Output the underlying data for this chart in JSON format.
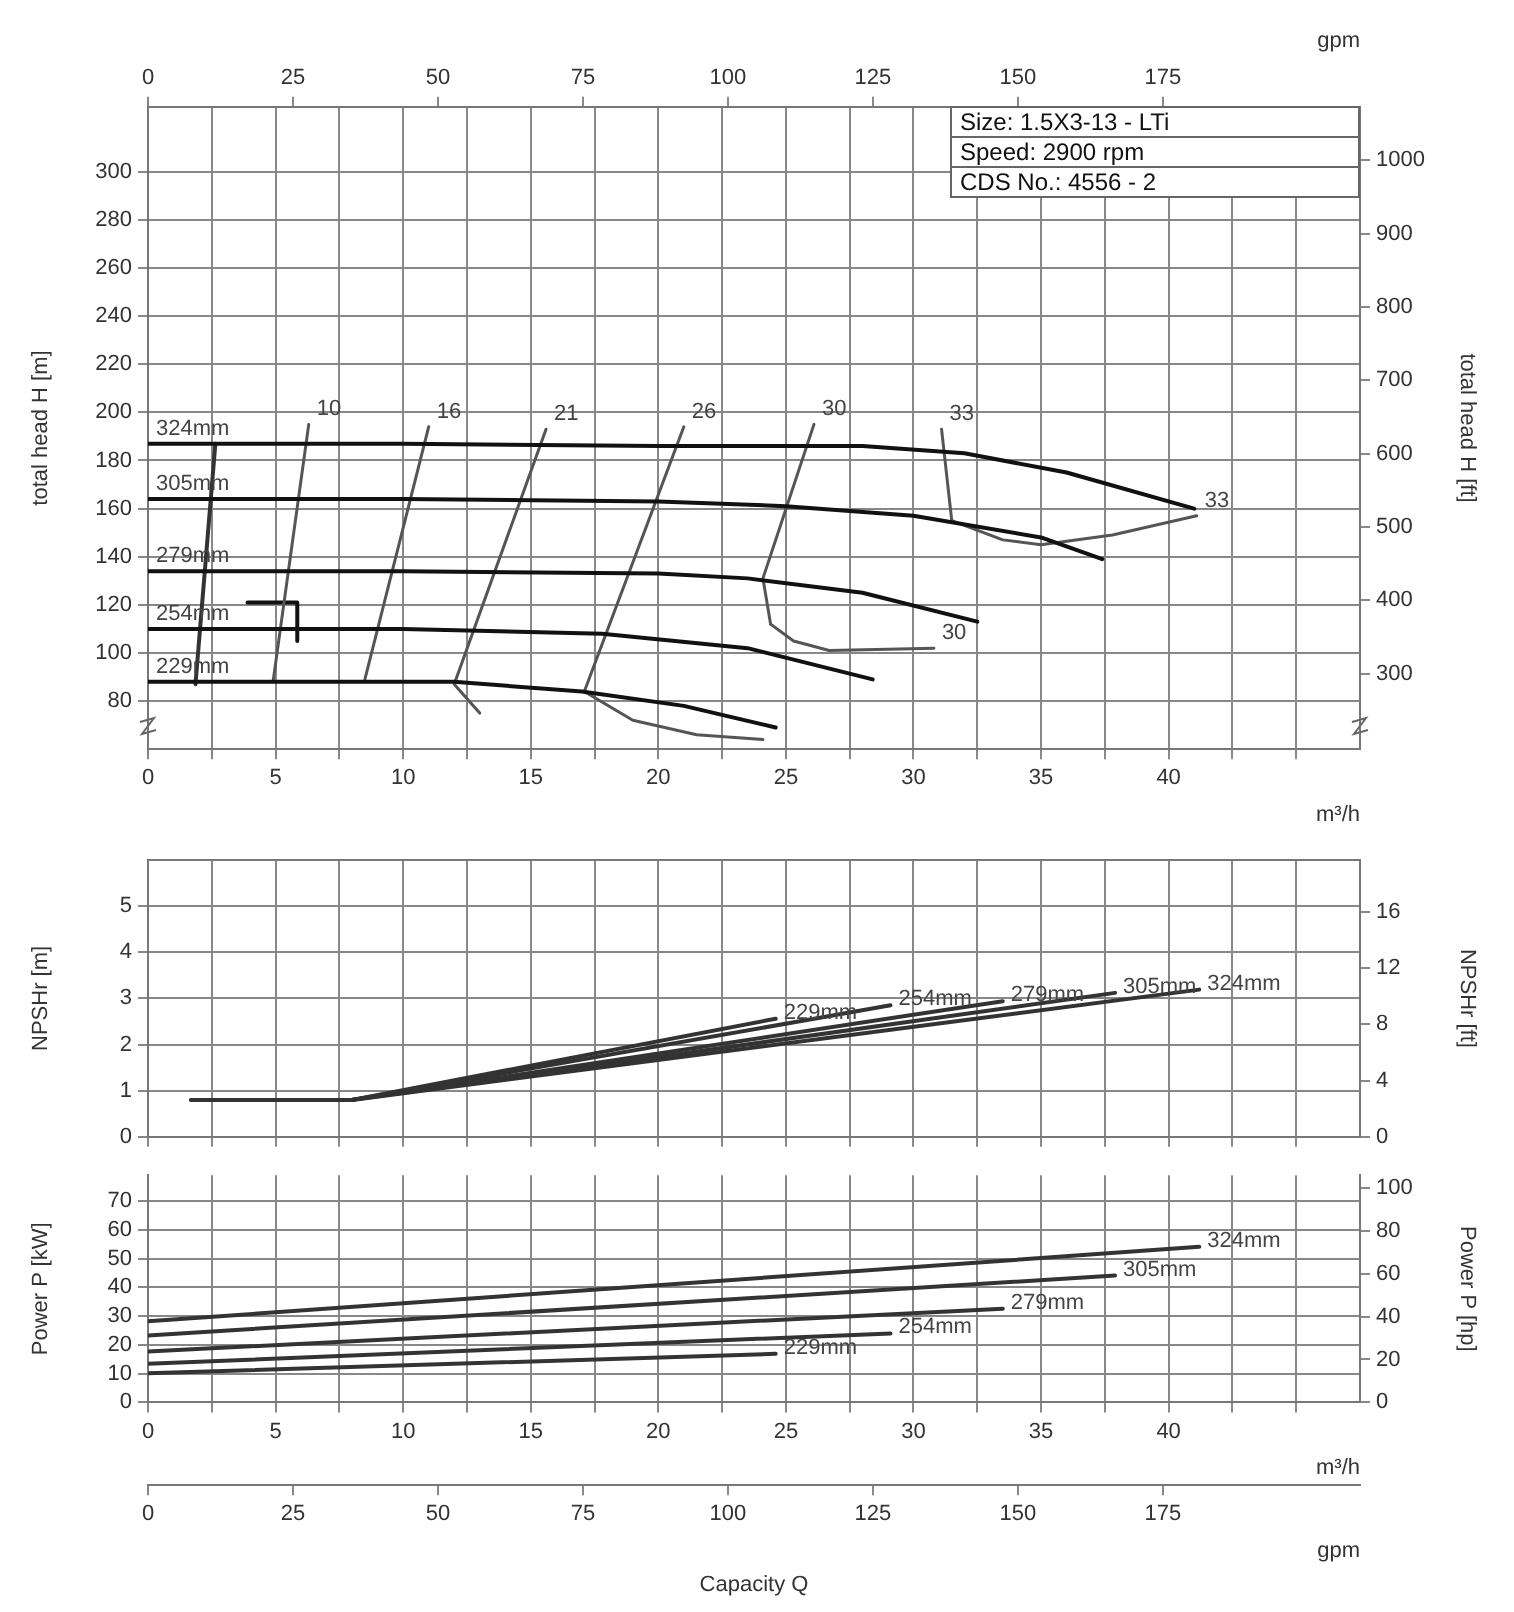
{
  "chart_data": [
    {
      "type": "line",
      "xlabel": "m³/h",
      "x2label": "gpm",
      "ylabel": "total head H [m]",
      "y2label": "total head H [ft]",
      "xlim": [
        0,
        47.5
      ],
      "xticks": [
        0,
        {
          "value": 2.5,
          "label": null
        },
        5,
        {
          "value": 7.5,
          "label": null
        },
        10,
        {
          "value": 12.5,
          "label": null
        },
        15,
        {
          "value": 17.5,
          "label": null
        },
        20,
        {
          "value": 22.5,
          "label": null
        },
        25,
        {
          "value": 27.5,
          "label": null
        },
        30,
        {
          "value": 32.5,
          "label": null
        },
        35,
        {
          "value": 37.5,
          "label": null
        },
        40,
        {
          "value": 42.5,
          "label": null
        },
        {
          "value": 45,
          "label": null
        }
      ],
      "x2lim": [
        0,
        209
      ],
      "x2ticks": [
        0,
        25,
        50,
        75,
        100,
        125,
        150,
        175
      ],
      "ylim": [
        60,
        327
      ],
      "yticks": [
        80,
        100,
        120,
        140,
        160,
        180,
        200,
        220,
        240,
        260,
        280,
        300
      ],
      "y2lim": [
        196.9,
        1072.9
      ],
      "y2ticks": [
        300,
        400,
        500,
        600,
        700,
        800,
        900,
        1000
      ],
      "grid": true,
      "legend": false,
      "series": [
        {
          "name": "324mm",
          "color": "#111111",
          "x": [
            0,
            10,
            20,
            28,
            32,
            36,
            41
          ],
          "values": [
            187,
            187,
            186,
            186,
            183,
            175,
            160
          ]
        },
        {
          "name": "305mm",
          "color": "#111111",
          "x": [
            0,
            10,
            20,
            25,
            30,
            35,
            37.4
          ],
          "values": [
            164,
            164,
            163,
            161,
            157,
            148,
            139
          ]
        },
        {
          "name": "279mm",
          "color": "#111111",
          "x": [
            0,
            10,
            20,
            23.5,
            28,
            32.5
          ],
          "values": [
            134,
            134,
            133,
            131,
            125,
            113
          ]
        },
        {
          "name": "254mm",
          "color": "#111111",
          "x": [
            0,
            10,
            17.8,
            23.5,
            28.4
          ],
          "values": [
            110,
            110,
            108,
            102,
            89
          ]
        },
        {
          "name": "229mm",
          "color": "#111111",
          "x": [
            0,
            12,
            17,
            21,
            24.6
          ],
          "values": [
            88,
            88,
            84,
            78,
            69
          ]
        },
        {
          "name": "10",
          "color": "#555555",
          "x": [
            6.3,
            4.9
          ],
          "values": [
            195,
            88
          ]
        },
        {
          "name": "16",
          "color": "#555555",
          "x": [
            11,
            8.5
          ],
          "values": [
            194,
            89
          ]
        },
        {
          "name": "21",
          "color": "#555555",
          "x": [
            15.6,
            12,
            13
          ],
          "values": [
            193,
            87,
            75
          ]
        },
        {
          "name": "26",
          "color": "#555555",
          "x": [
            21,
            17.1,
            19,
            21.5,
            24.1
          ],
          "values": [
            194,
            84,
            72,
            66,
            64
          ]
        },
        {
          "name": "30",
          "color": "#555555",
          "x": [
            26.1,
            24.1,
            24.4
          ],
          "values": [
            195,
            131,
            112
          ]
        },
        {
          "name": "30",
          "color": "#555555",
          "x": [
            30.8,
            26.7,
            25.3,
            24.4
          ],
          "values": [
            102,
            101,
            105,
            112
          ]
        },
        {
          "name": "33",
          "color": "#555555",
          "x": [
            31.1,
            31.5
          ],
          "values": [
            193,
            155
          ]
        },
        {
          "name": "33",
          "color": "#555555",
          "x": [
            41.1,
            37.8,
            35,
            33.5,
            31.5
          ],
          "values": [
            157,
            149,
            145,
            147,
            155
          ]
        },
        {
          "color": "#333333",
          "x": [
            1.86,
            2.64
          ],
          "values": [
            87,
            187
          ]
        },
        {
          "color": "#111111",
          "x": [
            3.9,
            5.85,
            5.85
          ],
          "values": [
            121,
            121,
            105
          ]
        }
      ],
      "annotations": [
        "Size: 1.5X3-13 - LTi",
        "Speed: 2900 rpm",
        "CDS No.: 4556 - 2"
      ]
    },
    {
      "type": "line",
      "ylabel": "NPSHr [m]",
      "y2label": "NPSHr [ft]",
      "xlim": [
        0,
        47.5
      ],
      "xticks": [
        0,
        {
          "value": 2.5,
          "label": null
        },
        5,
        {
          "value": 7.5,
          "label": null
        },
        10,
        {
          "value": 12.5,
          "label": null
        },
        15,
        {
          "value": 17.5,
          "label": null
        },
        20,
        {
          "value": 22.5,
          "label": null
        },
        25,
        {
          "value": 27.5,
          "label": null
        },
        30,
        {
          "value": 32.5,
          "label": null
        },
        35,
        {
          "value": 37.5,
          "label": null
        },
        40,
        {
          "value": 42.5,
          "label": null
        },
        {
          "value": 45,
          "label": null
        }
      ],
      "ylim": [
        0,
        6
      ],
      "yticks": [
        0,
        1,
        2,
        3,
        4,
        5
      ],
      "y2lim": [
        0,
        19.7
      ],
      "y2ticks": [
        0,
        4,
        8,
        12,
        16
      ],
      "grid": true,
      "legend": false,
      "tick_labels": "y",
      "series": [
        {
          "name": "229mm",
          "color": "#333333",
          "x": [
            1.7,
            8,
            24.6
          ],
          "values": [
            0.8,
            0.8,
            2.56
          ]
        },
        {
          "name": "254mm",
          "color": "#333333",
          "x": [
            1.7,
            8,
            29.1
          ],
          "values": [
            0.8,
            0.8,
            2.85
          ]
        },
        {
          "name": "279mm",
          "color": "#333333",
          "x": [
            1.7,
            8,
            33.5
          ],
          "values": [
            0.8,
            0.8,
            2.94
          ]
        },
        {
          "name": "305mm",
          "color": "#333333",
          "x": [
            1.7,
            8,
            37.9
          ],
          "values": [
            0.8,
            0.8,
            3.12
          ]
        },
        {
          "name": "324mm",
          "color": "#333333",
          "x": [
            1.7,
            8,
            41.2
          ],
          "values": [
            0.8,
            0.8,
            3.19
          ]
        }
      ]
    },
    {
      "type": "line",
      "xlabel": "m³/h",
      "x2label": "gpm",
      "ylabel": "Power P [kW]",
      "y2label": "Power P [hp]",
      "xlim": [
        0,
        47.5
      ],
      "xticks": [
        0,
        {
          "value": 2.5,
          "label": null
        },
        5,
        {
          "value": 7.5,
          "label": null
        },
        10,
        {
          "value": 12.5,
          "label": null
        },
        15,
        {
          "value": 17.5,
          "label": null
        },
        20,
        {
          "value": 22.5,
          "label": null
        },
        25,
        {
          "value": 27.5,
          "label": null
        },
        30,
        {
          "value": 32.5,
          "label": null
        },
        35,
        {
          "value": 37.5,
          "label": null
        },
        40,
        {
          "value": 42.5,
          "label": null
        },
        {
          "value": 45,
          "label": null
        }
      ],
      "x2lim": [
        0,
        209
      ],
      "x2ticks": [
        0,
        25,
        50,
        75,
        100,
        125,
        150,
        175
      ],
      "ylim": [
        0,
        79
      ],
      "yticks": [
        0,
        10,
        20,
        30,
        40,
        50,
        60,
        70
      ],
      "y2lim": [
        0,
        105.9
      ],
      "y2ticks": [
        0,
        20,
        40,
        60,
        80,
        100
      ],
      "grid": true,
      "legend": false,
      "series": [
        {
          "name": "324mm",
          "color": "#333333",
          "x": [
            0,
            41.2
          ],
          "values": [
            28.2,
            54.1
          ]
        },
        {
          "name": "305mm",
          "color": "#333333",
          "x": [
            0,
            37.9
          ],
          "values": [
            23.3,
            44.1
          ]
        },
        {
          "name": "279mm",
          "color": "#333333",
          "x": [
            0,
            33.5
          ],
          "values": [
            17.7,
            32.6
          ]
        },
        {
          "name": "254mm",
          "color": "#333333",
          "x": [
            0,
            29.1
          ],
          "values": [
            13.4,
            24.0
          ]
        },
        {
          "name": "229mm",
          "color": "#333333",
          "x": [
            0,
            24.6
          ],
          "values": [
            10.1,
            16.9
          ]
        }
      ],
      "annotations": [
        "Capacity Q"
      ]
    }
  ]
}
